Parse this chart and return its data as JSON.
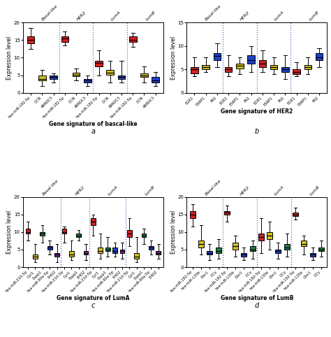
{
  "subplot_a": {
    "title": "Gene signature of bascal-like",
    "label": "a",
    "ylabel": "Expression level",
    "ylim": [
      0,
      20
    ],
    "yticks": [
      0,
      5,
      10,
      15,
      20
    ],
    "groups": [
      "Basal-like",
      "HER2",
      "LumA",
      "LumB"
    ],
    "group_positions": [
      1.5,
      4.5,
      7.5,
      10.5
    ],
    "xlabels": [
      "hsa-miR-182-5p",
      "DCN",
      "ARRDC3",
      "hsa-miR-182-5p",
      "DCN",
      "ARRDC3",
      "hsa-miR-182-5p",
      "DCN",
      "ARRDC3",
      "hsa-miR-182-5p",
      "DCN",
      "ARRDC3"
    ],
    "colors": [
      "red",
      "yellow",
      "blue",
      "red",
      "yellow",
      "blue",
      "red",
      "yellow",
      "blue",
      "red",
      "yellow",
      "blue"
    ],
    "boxes": [
      {
        "med": 15.0,
        "q1": 14.0,
        "q3": 16.0,
        "whislo": 12.5,
        "whishi": 18.5
      },
      {
        "med": 4.0,
        "q1": 3.5,
        "q3": 5.0,
        "whislo": 2.0,
        "whishi": 6.5
      },
      {
        "med": 4.5,
        "q1": 4.0,
        "q3": 5.0,
        "whislo": 3.0,
        "whishi": 5.5
      },
      {
        "med": 15.5,
        "q1": 14.5,
        "q3": 16.0,
        "whislo": 13.5,
        "whishi": 17.5
      },
      {
        "med": 5.2,
        "q1": 4.8,
        "q3": 5.8,
        "whislo": 3.5,
        "whishi": 7.0
      },
      {
        "med": 3.5,
        "q1": 3.0,
        "q3": 4.0,
        "whislo": 2.0,
        "whishi": 5.0
      },
      {
        "med": 8.5,
        "q1": 7.5,
        "q3": 9.0,
        "whislo": 5.0,
        "whishi": 12.0
      },
      {
        "med": 5.8,
        "q1": 5.2,
        "q3": 6.5,
        "whislo": 3.0,
        "whishi": 9.0
      },
      {
        "med": 4.5,
        "q1": 4.0,
        "q3": 5.0,
        "whislo": 3.0,
        "whishi": 9.0
      },
      {
        "med": 15.0,
        "q1": 14.5,
        "q3": 16.0,
        "whislo": 13.0,
        "whishi": 17.0
      },
      {
        "med": 5.0,
        "q1": 4.5,
        "q3": 5.5,
        "whislo": 3.0,
        "whishi": 7.5
      },
      {
        "med": 3.5,
        "q1": 3.0,
        "q3": 4.5,
        "whislo": 2.0,
        "whishi": 6.0
      }
    ],
    "dividers": [
      3,
      6,
      9
    ]
  },
  "subplot_b": {
    "title": "Gene signature of HER2",
    "label": "b",
    "ylabel": "Expression level",
    "ylim": [
      0,
      15
    ],
    "yticks": [
      0,
      5,
      10,
      15
    ],
    "groups": [
      "Basal-like",
      "HER2",
      "LumA",
      "LumB"
    ],
    "group_positions": [
      1.5,
      4.5,
      7.5,
      10.5
    ],
    "xlabels": [
      "EGR1",
      "ESRP1",
      "FN1",
      "EGR1",
      "ESRP1",
      "FN1",
      "EGR1",
      "ESRP1",
      "FN1",
      "EGR1",
      "ESRP1",
      "FN1"
    ],
    "colors": [
      "red",
      "yellow",
      "blue",
      "red",
      "yellow",
      "blue",
      "red",
      "yellow",
      "blue",
      "red",
      "yellow",
      "blue"
    ],
    "boxes": [
      {
        "med": 5.0,
        "q1": 4.2,
        "q3": 5.5,
        "whislo": 3.5,
        "whishi": 7.5
      },
      {
        "med": 5.5,
        "q1": 5.0,
        "q3": 6.0,
        "whislo": 4.5,
        "whishi": 7.5
      },
      {
        "med": 7.8,
        "q1": 7.0,
        "q3": 8.5,
        "whislo": 5.5,
        "whishi": 10.5
      },
      {
        "med": 5.0,
        "q1": 4.5,
        "q3": 5.5,
        "whislo": 3.5,
        "whishi": 8.0
      },
      {
        "med": 5.8,
        "q1": 5.2,
        "q3": 6.2,
        "whislo": 4.0,
        "whishi": 7.5
      },
      {
        "med": 7.0,
        "q1": 6.2,
        "q3": 8.0,
        "whislo": 4.5,
        "whishi": 10.0
      },
      {
        "med": 6.2,
        "q1": 5.5,
        "q3": 7.0,
        "whislo": 4.5,
        "whishi": 9.0
      },
      {
        "med": 5.5,
        "q1": 5.0,
        "q3": 6.0,
        "whislo": 4.0,
        "whishi": 7.5
      },
      {
        "med": 5.0,
        "q1": 4.5,
        "q3": 5.5,
        "whislo": 3.0,
        "whishi": 8.0
      },
      {
        "med": 4.5,
        "q1": 4.0,
        "q3": 5.0,
        "whislo": 3.5,
        "whishi": 6.5
      },
      {
        "med": 5.5,
        "q1": 5.0,
        "q3": 6.0,
        "whislo": 4.0,
        "whishi": 7.5
      },
      {
        "med": 7.5,
        "q1": 7.0,
        "q3": 8.5,
        "whislo": 5.5,
        "whishi": 9.5
      }
    ],
    "dividers": [
      3,
      6,
      9
    ]
  },
  "subplot_c": {
    "title": "Gene signature of LumA",
    "label": "c",
    "ylabel": "Expression level",
    "ylim": [
      0,
      20
    ],
    "yticks": [
      0,
      5,
      10,
      15,
      20
    ],
    "groups": [
      "Basal-like",
      "HER2",
      "LumA",
      "LumB"
    ],
    "group_positions": [
      2.5,
      7.0,
      11.5,
      16.5
    ],
    "xlabels": [
      "hsa-miR-210-5p",
      "Cyr1",
      "Espp1",
      "hsa-miR-90a-5p",
      "EHD2",
      "hsa-miR-210-5p",
      "Cyr1",
      "Espp1",
      "EHD2",
      "hsa-miR-210-5p",
      "Cyr1",
      "Espp1",
      "hsa-miR-90a-5p",
      "EHD2",
      "hsa-miR-210-5p",
      "Cyr1",
      "Espp1",
      "hsa-miR-90a-5p",
      "EHD2"
    ],
    "colors": [
      "red",
      "yellow",
      "green",
      "blue",
      "purple",
      "red",
      "yellow",
      "green",
      "purple",
      "red",
      "yellow",
      "green",
      "blue",
      "purple",
      "red",
      "yellow",
      "green",
      "blue",
      "purple"
    ],
    "boxes": [
      {
        "med": 10.0,
        "q1": 9.5,
        "q3": 11.0,
        "whislo": 7.5,
        "whishi": 13.0
      },
      {
        "med": 3.0,
        "q1": 2.5,
        "q3": 3.5,
        "whislo": 1.5,
        "whishi": 6.5
      },
      {
        "med": 9.5,
        "q1": 9.0,
        "q3": 10.0,
        "whislo": 7.0,
        "whishi": 12.0
      },
      {
        "med": 5.5,
        "q1": 5.0,
        "q3": 6.0,
        "whislo": 3.5,
        "whishi": 7.5
      },
      {
        "med": 3.5,
        "q1": 3.0,
        "q3": 4.0,
        "whislo": 1.5,
        "whishi": 6.5
      },
      {
        "med": 10.0,
        "q1": 9.5,
        "q3": 11.0,
        "whislo": 7.0,
        "whishi": 11.5
      },
      {
        "med": 3.5,
        "q1": 3.0,
        "q3": 4.5,
        "whislo": 2.0,
        "whishi": 7.5
      },
      {
        "med": 9.0,
        "q1": 8.5,
        "q3": 9.5,
        "whislo": 7.5,
        "whishi": 10.5
      },
      {
        "med": 4.0,
        "q1": 3.5,
        "q3": 4.5,
        "whislo": 2.0,
        "whishi": 6.5
      },
      {
        "med": 13.0,
        "q1": 12.0,
        "q3": 14.0,
        "whislo": 9.0,
        "whishi": 15.0
      },
      {
        "med": 4.5,
        "q1": 4.0,
        "q3": 5.5,
        "whislo": 2.5,
        "whishi": 9.5
      },
      {
        "med": 5.0,
        "q1": 4.5,
        "q3": 5.5,
        "whislo": 3.0,
        "whishi": 8.5
      },
      {
        "med": 4.5,
        "q1": 4.0,
        "q3": 5.5,
        "whislo": 3.0,
        "whishi": 7.0
      },
      {
        "med": 4.5,
        "q1": 4.0,
        "q3": 5.0,
        "whislo": 2.5,
        "whishi": 7.0
      },
      {
        "med": 9.5,
        "q1": 8.5,
        "q3": 10.5,
        "whislo": 6.0,
        "whishi": 14.0
      },
      {
        "med": 3.0,
        "q1": 2.5,
        "q3": 4.0,
        "whislo": 1.5,
        "whishi": 8.5
      },
      {
        "med": 9.0,
        "q1": 8.5,
        "q3": 9.5,
        "whislo": 6.5,
        "whishi": 11.0
      },
      {
        "med": 5.5,
        "q1": 5.0,
        "q3": 6.0,
        "whislo": 3.5,
        "whishi": 7.5
      },
      {
        "med": 4.0,
        "q1": 3.5,
        "q3": 4.5,
        "whislo": 2.5,
        "whishi": 6.5
      }
    ],
    "dividers": [
      5,
      9,
      14
    ]
  },
  "subplot_d": {
    "title": "Gene signature of LumB",
    "label": "d",
    "ylabel": "Expression level",
    "ylim": [
      0,
      20
    ],
    "yticks": [
      0,
      5,
      10,
      15,
      20
    ],
    "groups": [
      "Basal-like",
      "HER2",
      "LumA",
      "LumB"
    ],
    "group_positions": [
      2.0,
      6.0,
      10.0,
      14.0
    ],
    "xlabels": [
      "hsa-miR-182-5p",
      "hsa-miR-135b",
      "Chn1",
      "DCy",
      "hsa-miR-182-5p",
      "hsa-miR-135b",
      "Chn1",
      "DCy",
      "hsa-miR-182-5p",
      "hsa-miR-135b",
      "Chn1",
      "DCy",
      "hsa-miR-182-5p",
      "hsa-miR-135b",
      "Chn1",
      "DCy"
    ],
    "colors": [
      "red",
      "yellow",
      "blue",
      "green",
      "red",
      "yellow",
      "blue",
      "green",
      "red",
      "yellow",
      "blue",
      "green",
      "red",
      "yellow",
      "blue",
      "green"
    ],
    "boxes": [
      {
        "med": 15.0,
        "q1": 14.0,
        "q3": 16.0,
        "whislo": 11.5,
        "whishi": 18.0
      },
      {
        "med": 6.5,
        "q1": 5.5,
        "q3": 7.5,
        "whislo": 3.5,
        "whishi": 12.0
      },
      {
        "med": 4.0,
        "q1": 3.5,
        "q3": 4.5,
        "whislo": 2.0,
        "whishi": 6.5
      },
      {
        "med": 4.5,
        "q1": 4.0,
        "q3": 5.5,
        "whislo": 2.5,
        "whishi": 8.0
      },
      {
        "med": 15.5,
        "q1": 15.0,
        "q3": 16.0,
        "whislo": 13.0,
        "whishi": 17.5
      },
      {
        "med": 6.0,
        "q1": 5.0,
        "q3": 7.0,
        "whislo": 3.0,
        "whishi": 9.0
      },
      {
        "med": 3.5,
        "q1": 3.0,
        "q3": 4.0,
        "whislo": 2.0,
        "whishi": 5.5
      },
      {
        "med": 5.0,
        "q1": 4.5,
        "q3": 6.0,
        "whislo": 2.5,
        "whishi": 7.5
      },
      {
        "med": 8.5,
        "q1": 7.5,
        "q3": 9.5,
        "whislo": 4.0,
        "whishi": 14.0
      },
      {
        "med": 9.0,
        "q1": 8.0,
        "q3": 10.0,
        "whislo": 5.0,
        "whishi": 13.0
      },
      {
        "med": 4.5,
        "q1": 4.0,
        "q3": 5.0,
        "whislo": 2.5,
        "whishi": 7.0
      },
      {
        "med": 5.5,
        "q1": 5.0,
        "q3": 6.5,
        "whislo": 3.0,
        "whishi": 9.5
      },
      {
        "med": 15.0,
        "q1": 14.5,
        "q3": 15.5,
        "whislo": 13.5,
        "whishi": 17.0
      },
      {
        "med": 6.5,
        "q1": 6.0,
        "q3": 7.5,
        "whislo": 3.5,
        "whishi": 9.0
      },
      {
        "med": 3.5,
        "q1": 3.0,
        "q3": 4.0,
        "whislo": 2.0,
        "whishi": 5.5
      },
      {
        "med": 5.0,
        "q1": 4.5,
        "q3": 5.5,
        "whislo": 3.0,
        "whishi": 7.5
      }
    ],
    "dividers": [
      4,
      8,
      12
    ]
  }
}
